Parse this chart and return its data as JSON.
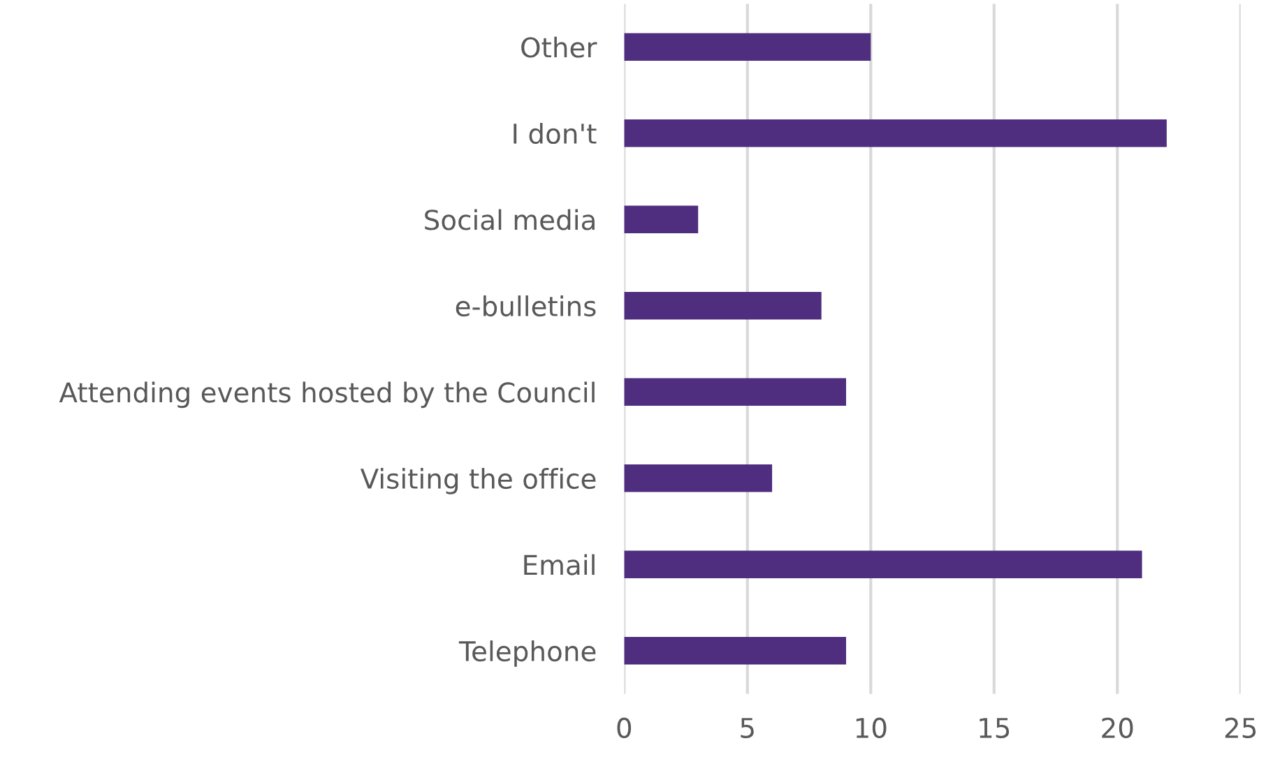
{
  "chart_data": {
    "type": "bar",
    "orientation": "horizontal",
    "categories": [
      "Other",
      "I don't",
      "Social media",
      "e-bulletins",
      "Attending events hosted by the Council",
      "Visiting the office",
      "Email",
      "Telephone"
    ],
    "values": [
      10,
      22,
      3,
      8,
      9,
      6,
      21,
      9
    ],
    "color": "#4f2d7f",
    "xlim": [
      0,
      25
    ],
    "xticks": [
      0,
      5,
      10,
      15,
      20,
      25
    ],
    "grid": "x",
    "legend": false
  }
}
